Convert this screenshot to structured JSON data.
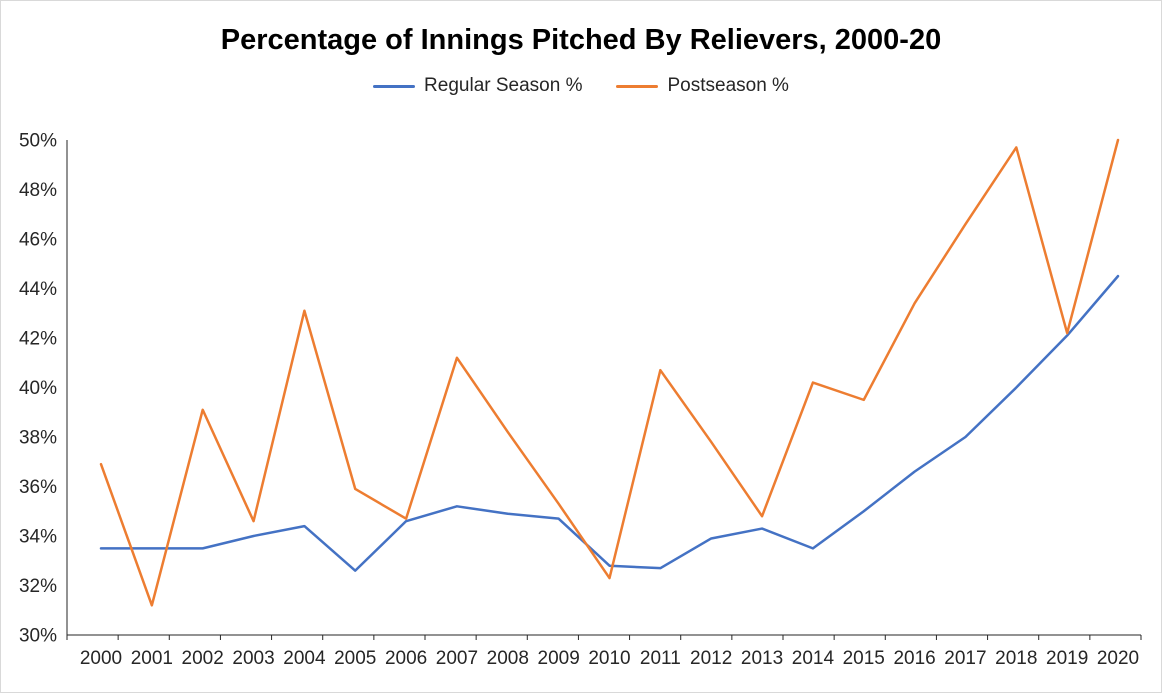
{
  "window": {
    "background_color": "#FFFFFF",
    "border_color": "#D9D9D9"
  },
  "chart_data": {
    "type": "line",
    "title": "Percentage of Innings Pitched By Relievers, 2000-20",
    "x": [
      2000,
      2001,
      2002,
      2003,
      2004,
      2005,
      2006,
      2007,
      2008,
      2009,
      2010,
      2011,
      2012,
      2013,
      2014,
      2015,
      2016,
      2017,
      2018,
      2019,
      2020
    ],
    "series": [
      {
        "name": "Regular Season %",
        "color": "#4472C4",
        "values": [
          33.5,
          33.5,
          33.5,
          34.0,
          34.4,
          32.6,
          34.6,
          35.2,
          34.9,
          34.7,
          32.8,
          32.7,
          33.9,
          34.3,
          33.5,
          35.0,
          36.6,
          38.0,
          40.0,
          42.1,
          44.5
        ]
      },
      {
        "name": "Postseason %",
        "color": "#ED7D31",
        "values": [
          36.9,
          31.2,
          39.1,
          34.6,
          43.1,
          35.9,
          34.7,
          41.2,
          38.2,
          35.3,
          32.3,
          40.7,
          37.8,
          34.8,
          40.2,
          39.5,
          43.4,
          46.6,
          49.7,
          42.2,
          50.0
        ]
      }
    ],
    "xlabel": "",
    "ylabel": "",
    "ylim": [
      30,
      50
    ],
    "y_tick_step": 2,
    "y_tick_suffix": "%",
    "grid": false,
    "legend_position": "top",
    "axis_color": "#262626",
    "label_color": "#262626"
  }
}
